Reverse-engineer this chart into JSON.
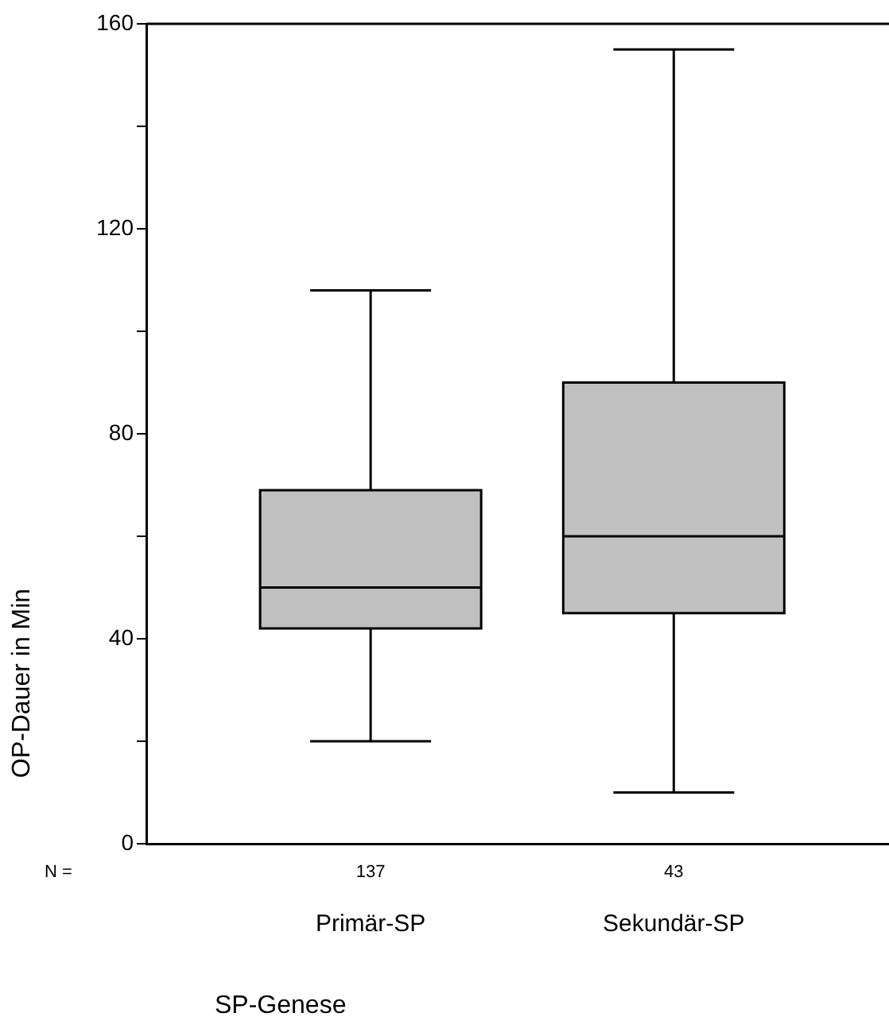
{
  "chart_data": {
    "type": "box",
    "categories": [
      "Primär-SP",
      "Sekundär-SP"
    ],
    "boxes": [
      {
        "low": 20,
        "q1": 42,
        "median": 50,
        "q3": 69,
        "high": 108
      },
      {
        "low": 10,
        "q1": 45,
        "median": 60,
        "q3": 90,
        "high": 155
      }
    ],
    "color": "#c0c0c0",
    "ylabel": "OP-Dauer in Min",
    "ylim": [
      0,
      160
    ],
    "yticks": [
      0,
      {
        "value": 20,
        "label": null
      },
      40,
      {
        "value": 60,
        "label": null
      },
      80,
      {
        "value": 100,
        "label": null
      },
      120,
      {
        "value": 140,
        "label": null
      },
      160
    ],
    "annotations": [
      "N =",
      "137",
      "43",
      "SP-Genese"
    ],
    "grid": false,
    "legend": false
  }
}
